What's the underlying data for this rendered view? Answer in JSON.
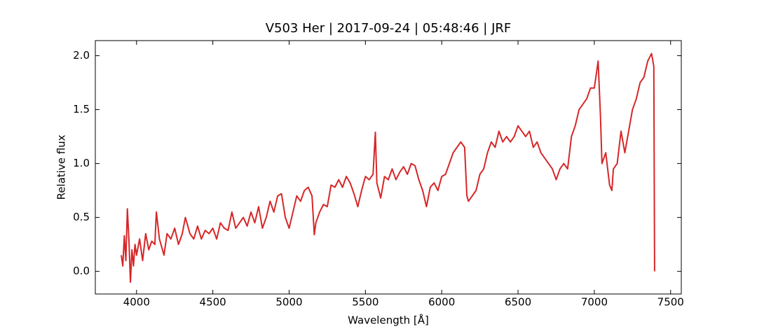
{
  "chart_data": {
    "type": "line",
    "title": "V503 Her | 2017-09-24 | 05:48:46 | JRF",
    "xlabel": "Wavelength [Å]",
    "ylabel": "Relative flux",
    "x": [
      3900,
      3910,
      3920,
      3930,
      3940,
      3950,
      3960,
      3970,
      3980,
      3990,
      4000,
      4020,
      4040,
      4060,
      4080,
      4100,
      4120,
      4130,
      4150,
      4180,
      4200,
      4225,
      4250,
      4275,
      4300,
      4320,
      4350,
      4375,
      4400,
      4425,
      4450,
      4475,
      4500,
      4525,
      4550,
      4575,
      4600,
      4625,
      4650,
      4675,
      4700,
      4725,
      4750,
      4775,
      4800,
      4825,
      4850,
      4875,
      4900,
      4925,
      4950,
      4975,
      5000,
      5025,
      5050,
      5075,
      5100,
      5125,
      5150,
      5165,
      5175,
      5200,
      5225,
      5250,
      5275,
      5300,
      5325,
      5350,
      5375,
      5400,
      5425,
      5450,
      5475,
      5500,
      5525,
      5550,
      5565,
      5575,
      5600,
      5625,
      5650,
      5675,
      5700,
      5725,
      5750,
      5775,
      5800,
      5825,
      5850,
      5875,
      5900,
      5925,
      5950,
      5975,
      6000,
      6025,
      6050,
      6075,
      6100,
      6125,
      6150,
      6165,
      6175,
      6200,
      6225,
      6250,
      6275,
      6300,
      6325,
      6350,
      6375,
      6400,
      6425,
      6450,
      6475,
      6500,
      6525,
      6550,
      6575,
      6600,
      6625,
      6650,
      6675,
      6700,
      6725,
      6750,
      6775,
      6800,
      6825,
      6850,
      6875,
      6900,
      6925,
      6950,
      6975,
      7000,
      7025,
      7040,
      7050,
      7075,
      7100,
      7115,
      7125,
      7150,
      7175,
      7200,
      7225,
      7250,
      7275,
      7300,
      7325,
      7350,
      7375,
      7390,
      7395
    ],
    "series": [
      {
        "name": "V503 Her",
        "color": "#d62728",
        "values": [
          0.15,
          0.05,
          0.33,
          0.1,
          0.58,
          0.3,
          -0.1,
          0.2,
          0.05,
          0.25,
          0.15,
          0.3,
          0.1,
          0.35,
          0.2,
          0.28,
          0.25,
          0.55,
          0.3,
          0.15,
          0.35,
          0.3,
          0.4,
          0.25,
          0.35,
          0.5,
          0.35,
          0.3,
          0.42,
          0.3,
          0.38,
          0.35,
          0.4,
          0.3,
          0.45,
          0.4,
          0.38,
          0.55,
          0.4,
          0.45,
          0.5,
          0.42,
          0.55,
          0.45,
          0.6,
          0.4,
          0.5,
          0.65,
          0.55,
          0.7,
          0.72,
          0.5,
          0.4,
          0.55,
          0.7,
          0.65,
          0.75,
          0.78,
          0.7,
          0.34,
          0.45,
          0.55,
          0.62,
          0.6,
          0.8,
          0.78,
          0.85,
          0.78,
          0.88,
          0.82,
          0.72,
          0.6,
          0.75,
          0.88,
          0.85,
          0.9,
          1.29,
          0.82,
          0.68,
          0.88,
          0.85,
          0.95,
          0.85,
          0.92,
          0.97,
          0.9,
          1.0,
          0.98,
          0.85,
          0.75,
          0.6,
          0.78,
          0.82,
          0.75,
          0.88,
          0.9,
          1.0,
          1.1,
          1.15,
          1.2,
          1.15,
          0.7,
          0.65,
          0.7,
          0.75,
          0.9,
          0.95,
          1.1,
          1.2,
          1.15,
          1.3,
          1.2,
          1.25,
          1.2,
          1.25,
          1.35,
          1.3,
          1.25,
          1.3,
          1.15,
          1.2,
          1.1,
          1.05,
          1.0,
          0.95,
          0.85,
          0.95,
          1.0,
          0.95,
          1.25,
          1.35,
          1.5,
          1.55,
          1.6,
          1.7,
          1.7,
          1.95,
          1.45,
          1.0,
          1.1,
          0.8,
          0.75,
          0.95,
          1.0,
          1.3,
          1.1,
          1.3,
          1.5,
          1.6,
          1.75,
          1.8,
          1.95,
          2.02,
          1.9,
          0.0
        ]
      }
    ],
    "xlim": [
      3730,
      7570
    ],
    "ylim": [
      -0.21,
      2.14
    ],
    "xticks": [
      4000,
      4500,
      5000,
      5500,
      6000,
      6500,
      7000,
      7500
    ],
    "yticks": [
      {
        "value": 0,
        "label": "0.0"
      },
      0.5,
      {
        "value": 1,
        "label": "1.0"
      },
      1.5,
      {
        "value": 2,
        "label": "2.0"
      }
    ]
  }
}
